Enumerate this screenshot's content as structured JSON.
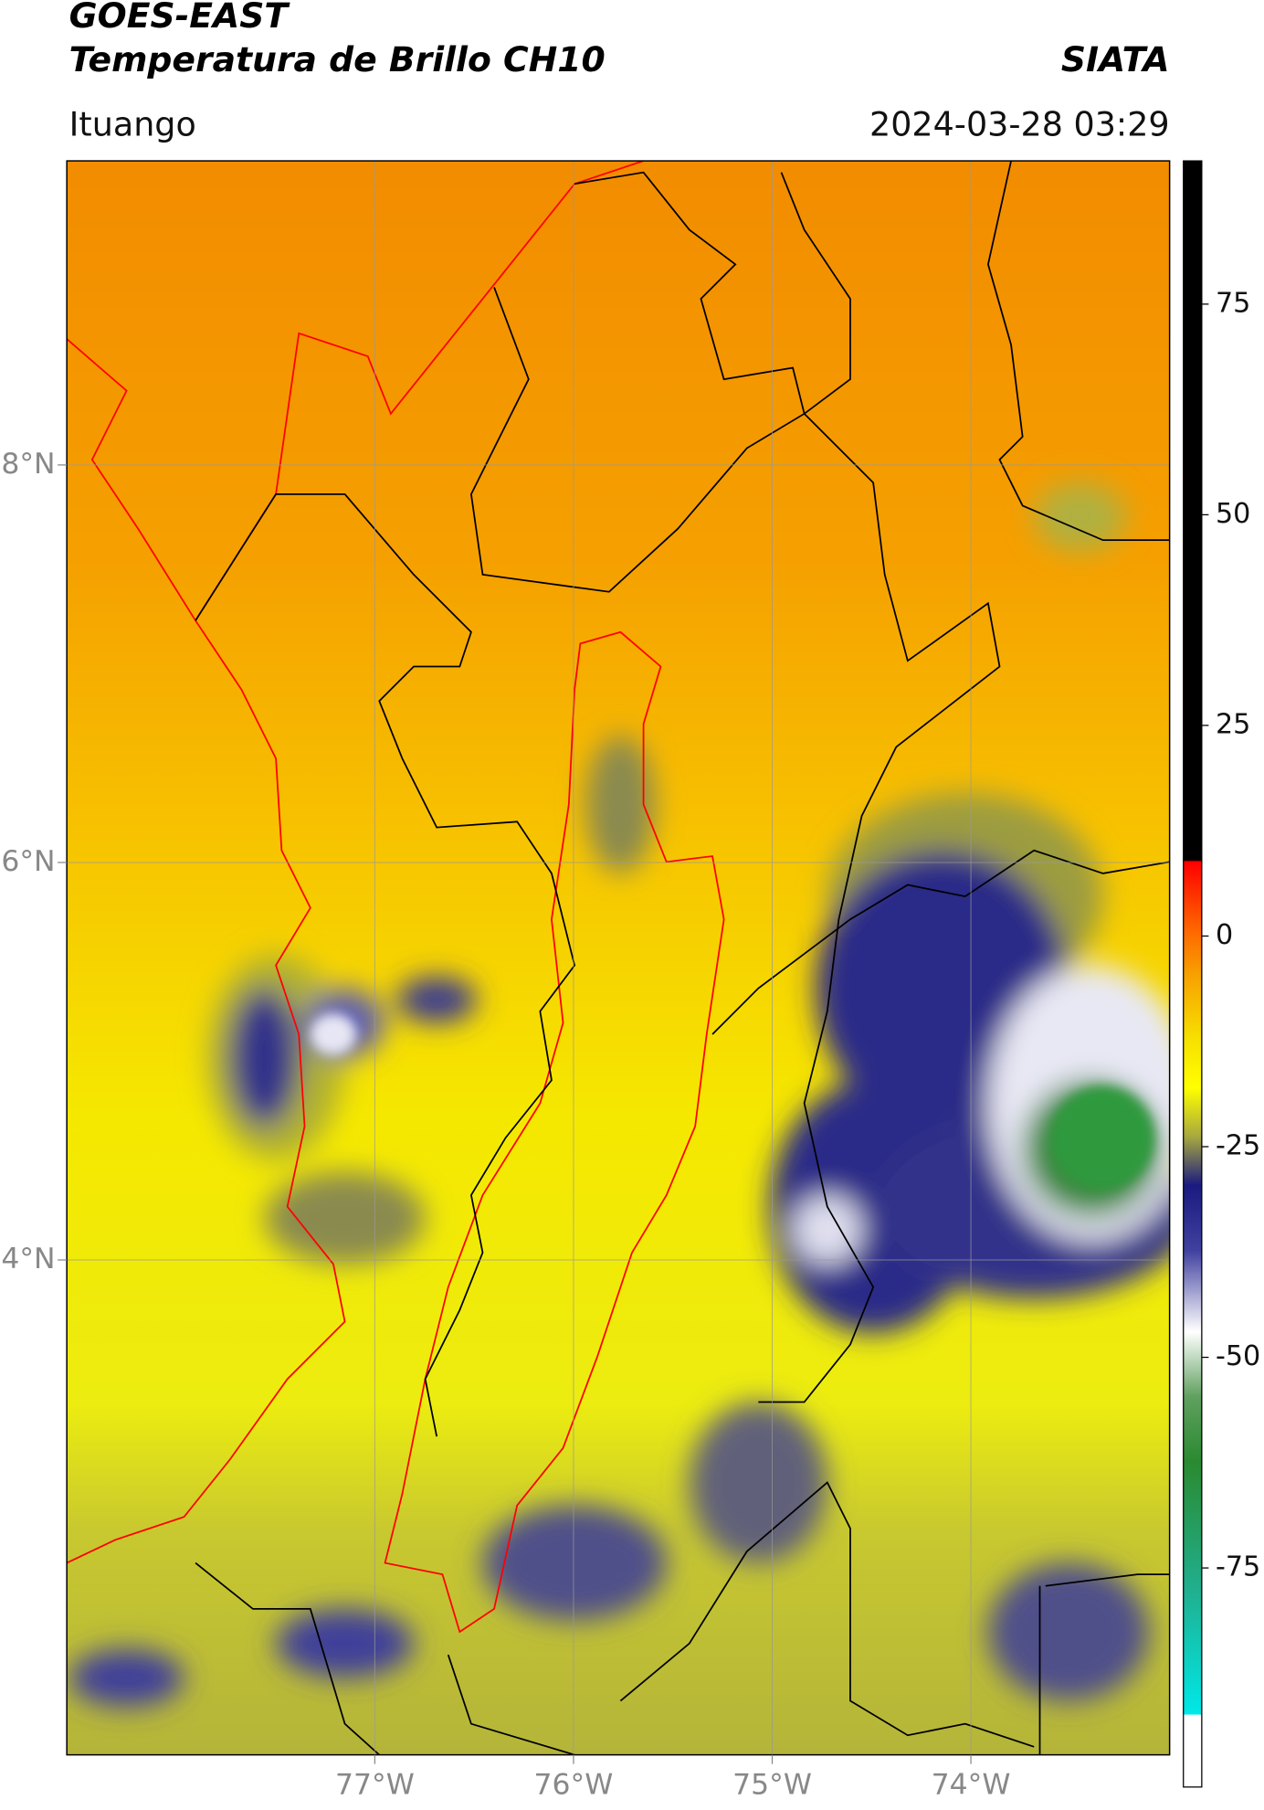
{
  "header": {
    "title_line1": "GOES-EAST",
    "title_line2": "Temperatura de Brillo CH10",
    "organization": "SIATA",
    "location": "Ituango",
    "datetime": "2024-03-28 03:29"
  },
  "map": {
    "xlim": [
      -78.55,
      -73.0
    ],
    "ylim": [
      1.51,
      9.53
    ],
    "lon_ticks": [
      {
        "value": -77,
        "label": "77°W"
      },
      {
        "value": -76,
        "label": "76°W"
      },
      {
        "value": -75,
        "label": "75°W"
      },
      {
        "value": -74,
        "label": "74°W"
      }
    ],
    "lat_ticks": [
      {
        "value": 8,
        "label": "8°N"
      },
      {
        "value": 6,
        "label": "6°N"
      },
      {
        "value": 4,
        "label": "4°N"
      }
    ]
  },
  "colorbar": {
    "clim": [
      -101,
      92
    ],
    "ticks": [
      75,
      50,
      25,
      0,
      -25,
      -50,
      -75
    ]
  }
}
